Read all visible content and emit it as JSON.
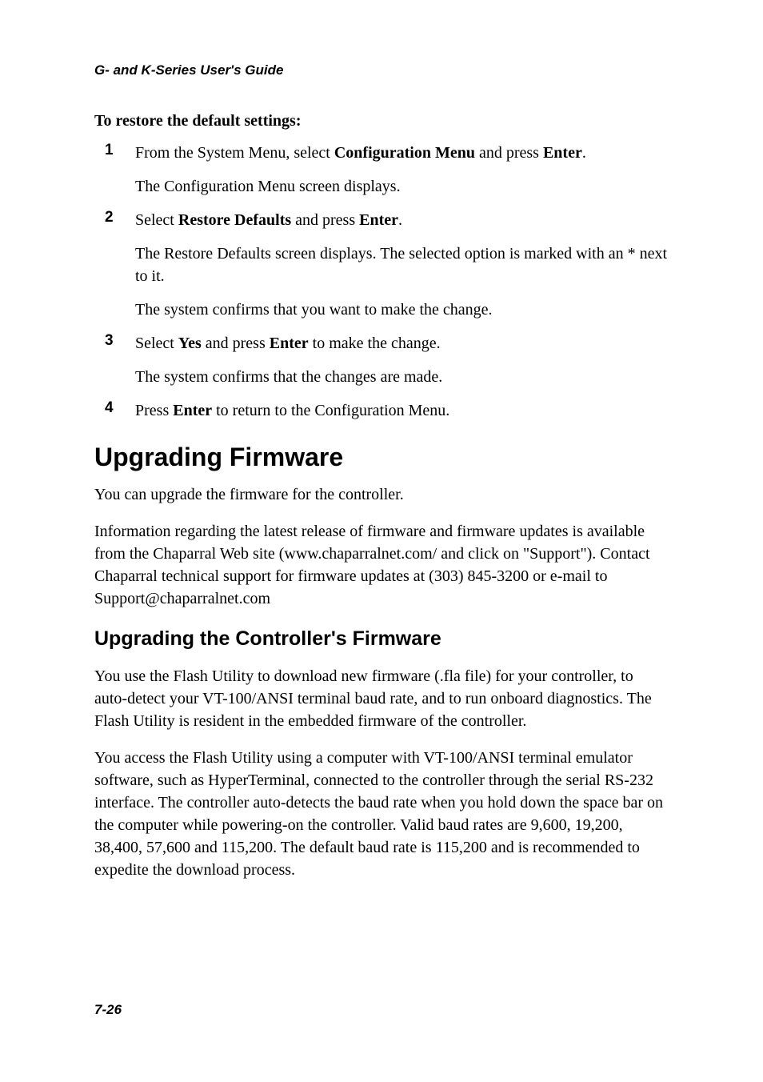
{
  "header": "G- and K-Series User's Guide",
  "restore": {
    "heading": "To restore the default settings:",
    "items": [
      {
        "num": "1",
        "lines": [
          "From the System Menu, select <b>Configuration Menu</b> and press <b>Enter</b>.",
          "The Configuration Menu screen displays."
        ]
      },
      {
        "num": "2",
        "lines": [
          "Select <b>Restore Defaults</b> and press <b>Enter</b>.",
          "The Restore Defaults screen displays. The selected option is marked with an * next to it.",
          "The system confirms that you want to make the change."
        ]
      },
      {
        "num": "3",
        "lines": [
          "Select <b>Yes</b> and press <b>Enter</b> to make the change.",
          "The system confirms that the changes are made."
        ]
      },
      {
        "num": "4",
        "lines": [
          "Press <b>Enter</b> to return to the Configuration Menu."
        ]
      }
    ]
  },
  "upgrading": {
    "title": "Upgrading Firmware",
    "p1": "You can upgrade the firmware for the controller.",
    "p2": "Information regarding the latest release of firmware and firmware updates is available from the Chaparral Web site (www.chaparralnet.com/ and click on \"Support\"). Contact Chaparral technical support for firmware updates at (303) 845-3200 or e-mail to Support@chaparralnet.com",
    "subtitle": "Upgrading the Controller's Firmware",
    "p3": "You use the Flash Utility to download new firmware (.fla file) for your controller, to auto-detect your VT-100/ANSI terminal baud rate, and to run onboard diagnostics. The Flash Utility is resident in the embedded firmware of the controller.",
    "p4": "You access the Flash Utility using a computer with VT-100/ANSI terminal emulator software, such as HyperTerminal, connected to the controller through the serial RS-232 interface. The controller auto-detects the baud rate when you hold down the space bar on the computer while powering-on the controller. Valid baud rates are 9,600, 19,200, 38,400, 57,600 and 115,200. The default baud rate is 115,200 and is recommended to expedite the download process."
  },
  "footer": "7-26"
}
